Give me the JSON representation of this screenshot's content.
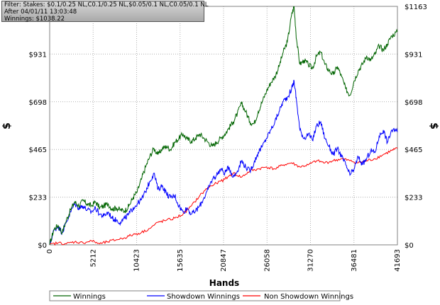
{
  "info": {
    "filter": "Filter: Stakes: $0.1/0.25 NL,C0.1/0.25 NL,$0.05/0.1 NL,C0.05/0.1 NL",
    "after": "After 04/01/11 13:03:48",
    "winnings": "Winnings: $1038.22"
  },
  "chart_data": {
    "type": "line",
    "xlabel": "Hands",
    "ylabel": "$",
    "ylabel_right": "$",
    "xlim": [
      0,
      41693
    ],
    "ylim": [
      0,
      1163
    ],
    "x_ticks": [
      "0",
      "5212",
      "10423",
      "15635",
      "20847",
      "26058",
      "31270",
      "36481",
      "41693"
    ],
    "y_ticks": [
      "$0",
      "$233",
      "$465",
      "$698",
      "$931",
      "$1163"
    ],
    "grid": true,
    "legend_position": "bottom",
    "series": [
      {
        "name": "Winnings",
        "color": "#006400",
        "points": [
          [
            0,
            0
          ],
          [
            500,
            75
          ],
          [
            1000,
            95
          ],
          [
            1500,
            60
          ],
          [
            2000,
            120
          ],
          [
            2500,
            170
          ],
          [
            3000,
            210
          ],
          [
            3500,
            190
          ],
          [
            4000,
            215
          ],
          [
            4500,
            200
          ],
          [
            5000,
            190
          ],
          [
            5500,
            210
          ],
          [
            6000,
            180
          ],
          [
            6500,
            190
          ],
          [
            7000,
            200
          ],
          [
            7500,
            175
          ],
          [
            8000,
            180
          ],
          [
            8500,
            170
          ],
          [
            9000,
            165
          ],
          [
            9500,
            190
          ],
          [
            10000,
            230
          ],
          [
            10500,
            260
          ],
          [
            11000,
            320
          ],
          [
            11500,
            380
          ],
          [
            12000,
            430
          ],
          [
            12500,
            470
          ],
          [
            13000,
            440
          ],
          [
            13500,
            470
          ],
          [
            14000,
            480
          ],
          [
            14500,
            465
          ],
          [
            15000,
            500
          ],
          [
            15500,
            520
          ],
          [
            16000,
            540
          ],
          [
            16500,
            515
          ],
          [
            17000,
            505
          ],
          [
            17500,
            520
          ],
          [
            18000,
            540
          ],
          [
            18500,
            520
          ],
          [
            19000,
            500
          ],
          [
            19500,
            480
          ],
          [
            20000,
            500
          ],
          [
            20500,
            520
          ],
          [
            21000,
            540
          ],
          [
            21500,
            570
          ],
          [
            22000,
            600
          ],
          [
            22500,
            640
          ],
          [
            23000,
            690
          ],
          [
            23500,
            650
          ],
          [
            24000,
            600
          ],
          [
            24500,
            590
          ],
          [
            25000,
            650
          ],
          [
            25500,
            700
          ],
          [
            26000,
            750
          ],
          [
            26500,
            790
          ],
          [
            27000,
            820
          ],
          [
            27500,
            870
          ],
          [
            28000,
            940
          ],
          [
            28500,
            990
          ],
          [
            29000,
            1120
          ],
          [
            29300,
            1163
          ],
          [
            29600,
            1000
          ],
          [
            30000,
            880
          ],
          [
            30500,
            900
          ],
          [
            31000,
            880
          ],
          [
            31500,
            860
          ],
          [
            32000,
            920
          ],
          [
            32500,
            940
          ],
          [
            33000,
            880
          ],
          [
            33500,
            850
          ],
          [
            34000,
            830
          ],
          [
            34500,
            870
          ],
          [
            35000,
            820
          ],
          [
            35500,
            760
          ],
          [
            36000,
            730
          ],
          [
            36500,
            800
          ],
          [
            37000,
            850
          ],
          [
            37500,
            880
          ],
          [
            38000,
            920
          ],
          [
            38500,
            900
          ],
          [
            39000,
            930
          ],
          [
            39500,
            970
          ],
          [
            40000,
            950
          ],
          [
            40500,
            980
          ],
          [
            41000,
            1020
          ],
          [
            41693,
            1038
          ]
        ]
      },
      {
        "name": "Showdown Winnings",
        "color": "#0000ff",
        "points": [
          [
            0,
            0
          ],
          [
            500,
            70
          ],
          [
            1000,
            90
          ],
          [
            1500,
            60
          ],
          [
            2000,
            110
          ],
          [
            2500,
            160
          ],
          [
            3000,
            200
          ],
          [
            3500,
            180
          ],
          [
            4000,
            190
          ],
          [
            4500,
            170
          ],
          [
            5000,
            160
          ],
          [
            5500,
            180
          ],
          [
            6000,
            150
          ],
          [
            6500,
            140
          ],
          [
            7000,
            160
          ],
          [
            7500,
            130
          ],
          [
            8000,
            120
          ],
          [
            8500,
            110
          ],
          [
            9000,
            130
          ],
          [
            9500,
            150
          ],
          [
            10000,
            180
          ],
          [
            10500,
            200
          ],
          [
            11000,
            220
          ],
          [
            11500,
            260
          ],
          [
            12000,
            310
          ],
          [
            12500,
            350
          ],
          [
            13000,
            270
          ],
          [
            13500,
            290
          ],
          [
            14000,
            250
          ],
          [
            14500,
            230
          ],
          [
            15000,
            240
          ],
          [
            15500,
            190
          ],
          [
            16000,
            160
          ],
          [
            16500,
            180
          ],
          [
            17000,
            150
          ],
          [
            17500,
            165
          ],
          [
            18000,
            190
          ],
          [
            18500,
            230
          ],
          [
            19000,
            270
          ],
          [
            19500,
            320
          ],
          [
            20000,
            340
          ],
          [
            20500,
            370
          ],
          [
            21000,
            350
          ],
          [
            21500,
            380
          ],
          [
            22000,
            330
          ],
          [
            22500,
            360
          ],
          [
            23000,
            410
          ],
          [
            23500,
            380
          ],
          [
            24000,
            360
          ],
          [
            24500,
            400
          ],
          [
            25000,
            450
          ],
          [
            25500,
            480
          ],
          [
            26000,
            520
          ],
          [
            26500,
            560
          ],
          [
            27000,
            600
          ],
          [
            27500,
            650
          ],
          [
            28000,
            700
          ],
          [
            28500,
            720
          ],
          [
            29000,
            760
          ],
          [
            29300,
            800
          ],
          [
            29600,
            700
          ],
          [
            30000,
            560
          ],
          [
            30500,
            520
          ],
          [
            31000,
            540
          ],
          [
            31500,
            510
          ],
          [
            32000,
            580
          ],
          [
            32500,
            600
          ],
          [
            33000,
            520
          ],
          [
            33500,
            480
          ],
          [
            34000,
            440
          ],
          [
            34500,
            470
          ],
          [
            35000,
            430
          ],
          [
            35500,
            390
          ],
          [
            36000,
            340
          ],
          [
            36500,
            370
          ],
          [
            37000,
            430
          ],
          [
            37500,
            390
          ],
          [
            38000,
            420
          ],
          [
            38500,
            460
          ],
          [
            39000,
            450
          ],
          [
            39500,
            530
          ],
          [
            40000,
            560
          ],
          [
            40500,
            500
          ],
          [
            41000,
            560
          ],
          [
            41693,
            550
          ]
        ]
      },
      {
        "name": "Non Showdown Winnings",
        "color": "#ff0000",
        "points": [
          [
            0,
            0
          ],
          [
            1000,
            10
          ],
          [
            2000,
            5
          ],
          [
            3000,
            15
          ],
          [
            4000,
            10
          ],
          [
            5000,
            20
          ],
          [
            6000,
            5
          ],
          [
            7000,
            15
          ],
          [
            8000,
            25
          ],
          [
            9000,
            35
          ],
          [
            10000,
            50
          ],
          [
            11000,
            60
          ],
          [
            12000,
            80
          ],
          [
            13000,
            110
          ],
          [
            14000,
            120
          ],
          [
            15000,
            130
          ],
          [
            16000,
            150
          ],
          [
            17000,
            190
          ],
          [
            18000,
            240
          ],
          [
            19000,
            280
          ],
          [
            20000,
            300
          ],
          [
            21000,
            320
          ],
          [
            22000,
            350
          ],
          [
            23000,
            330
          ],
          [
            24000,
            360
          ],
          [
            25000,
            370
          ],
          [
            26000,
            380
          ],
          [
            27000,
            370
          ],
          [
            28000,
            390
          ],
          [
            29000,
            400
          ],
          [
            30000,
            380
          ],
          [
            31000,
            390
          ],
          [
            32000,
            410
          ],
          [
            33000,
            400
          ],
          [
            34000,
            410
          ],
          [
            35000,
            420
          ],
          [
            36000,
            410
          ],
          [
            37000,
            400
          ],
          [
            38000,
            410
          ],
          [
            39000,
            420
          ],
          [
            40000,
            440
          ],
          [
            41000,
            460
          ],
          [
            41693,
            470
          ]
        ]
      }
    ]
  }
}
